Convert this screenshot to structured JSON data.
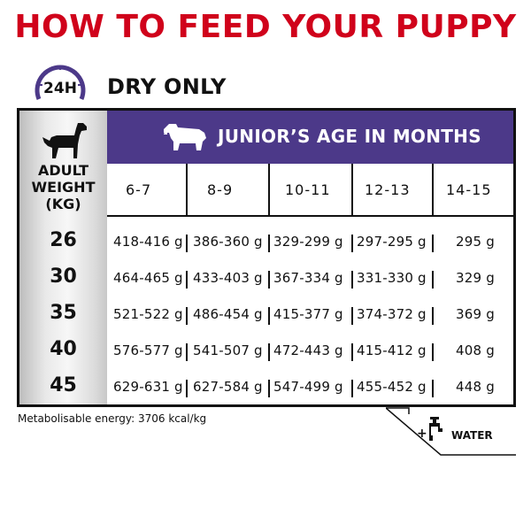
{
  "title": "HOW TO FEED YOUR PUPPY",
  "clock_label": "24H",
  "section_label": "DRY ONLY",
  "header": {
    "age_title": "JUNIOR’S AGE IN MONTHS",
    "weight_title_lines": [
      "ADULT",
      "WEIGHT",
      "(KG)"
    ],
    "months": [
      "6-7",
      "8-9",
      "10-11",
      "12-13",
      "14-15"
    ]
  },
  "rows": [
    {
      "weight": "26",
      "values": [
        "418-416 g",
        "386-360 g",
        "329-299 g",
        "297-295 g",
        "295 g"
      ]
    },
    {
      "weight": "30",
      "values": [
        "464-465 g",
        "433-403 g",
        "367-334 g",
        "331-330 g",
        "329 g"
      ]
    },
    {
      "weight": "35",
      "values": [
        "521-522 g",
        "486-454 g",
        "415-377 g",
        "374-372 g",
        "369 g"
      ]
    },
    {
      "weight": "40",
      "values": [
        "576-577 g",
        "541-507 g",
        "472-443 g",
        "415-412 g",
        "408 g"
      ]
    },
    {
      "weight": "45",
      "values": [
        "629-631 g",
        "627-584 g",
        "547-499 g",
        "455-452 g",
        "448 g"
      ]
    }
  ],
  "footer": {
    "energy": "Metabolisable energy: 3706 kcal/kg",
    "plus": "+",
    "water": "WATER"
  },
  "colors": {
    "title_red": "#d0021b",
    "header_purple": "#4c3989"
  },
  "icons": [
    "clock-icon",
    "dog-icon",
    "puppy-icon",
    "water-tap-icon"
  ]
}
